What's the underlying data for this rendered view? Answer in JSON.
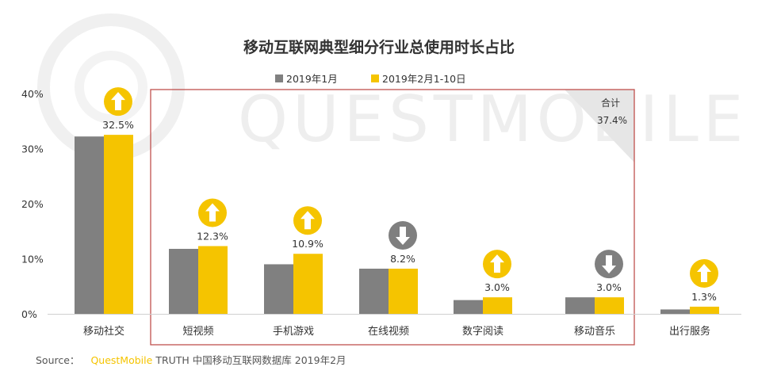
{
  "chart_data": {
    "type": "bar",
    "title": "移动互联网典型细分行业总使用时长占比",
    "categories": [
      "移动社交",
      "短视频",
      "手机游戏",
      "在线视频",
      "数字阅读",
      "移动音乐",
      "出行服务"
    ],
    "series": [
      {
        "name": "2019年1月",
        "color": "#808080",
        "values": [
          32.2,
          11.8,
          9.0,
          8.2,
          2.5,
          3.0,
          0.8
        ]
      },
      {
        "name": "2019年2月1-10日",
        "color": "#f5c400",
        "values": [
          32.5,
          12.3,
          10.9,
          8.2,
          3.0,
          3.0,
          1.3
        ]
      }
    ],
    "data_labels": [
      "32.5%",
      "12.3%",
      "10.9%",
      "8.2%",
      "3.0%",
      "3.0%",
      "1.3%"
    ],
    "trends": [
      "up",
      "up",
      "up",
      "down",
      "up",
      "down",
      "up"
    ],
    "trend_colors": {
      "up": "#f5c400",
      "down": "#7f7f7f"
    },
    "ylim": [
      0,
      40
    ],
    "yticks": [
      0,
      10,
      20,
      30,
      40
    ],
    "ytick_labels": [
      "0%",
      "10%",
      "20%",
      "30%",
      "40%"
    ],
    "highlight_box": {
      "label": "合计",
      "value": "37.4%",
      "color": "#c0504d"
    },
    "xlabel": "",
    "ylabel": "",
    "legend_position": "top-center"
  },
  "watermark": "QUESTMOBILE",
  "source": {
    "prefix": "Source：",
    "brand": "QuestMobile",
    "rest": "TRUTH 中国移动互联网数据库 2019年2月",
    "brand_color": "#f5c400"
  }
}
